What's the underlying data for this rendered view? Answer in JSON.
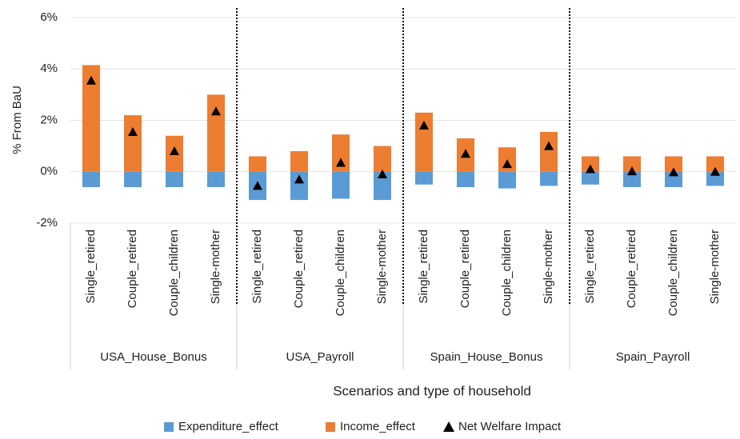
{
  "chart_data": {
    "type": "bar",
    "y_label": "% From BaU",
    "x_label": "Scenarios and type of household",
    "groups": [
      "USA_House_Bonus",
      "USA_Payroll",
      "Spain_House_Bonus",
      "Spain_Payroll"
    ],
    "categories": [
      "Single_retired",
      "Couple_retired",
      "Couple_children",
      "Single-mother",
      "Single_retired",
      "Couple_retired",
      "Couple_children",
      "Single-mother",
      "Single_retired",
      "Couple_retired",
      "Couple_children",
      "Single-mother",
      "Single_retired",
      "Couple_retired",
      "Couple_children",
      "Single-mother"
    ],
    "series": [
      {
        "name": "Expenditure_effect",
        "color": "#5b9bd5",
        "marker": "bar",
        "values": [
          -0.6,
          -0.6,
          -0.6,
          -0.6,
          -1.1,
          -1.1,
          -1.05,
          -1.1,
          -0.5,
          -0.6,
          -0.65,
          -0.55,
          -0.5,
          -0.6,
          -0.6,
          -0.55
        ]
      },
      {
        "name": "Income_effect",
        "color": "#ed7d31",
        "marker": "bar",
        "values": [
          4.15,
          2.2,
          1.4,
          3.0,
          0.6,
          0.8,
          1.45,
          1.0,
          2.3,
          1.3,
          0.95,
          1.55,
          0.6,
          0.6,
          0.6,
          0.6
        ]
      },
      {
        "name": "Net Welfare Impact",
        "color": "#000000",
        "marker": "triangle",
        "values": [
          3.55,
          1.55,
          0.8,
          2.35,
          -0.55,
          -0.3,
          0.35,
          -0.1,
          1.8,
          0.7,
          0.3,
          1.0,
          0.1,
          0.02,
          -0.02,
          0.0
        ]
      }
    ],
    "ylim": [
      -2,
      6
    ],
    "yticks": [
      {
        "value": -2,
        "label": "-2%"
      },
      {
        "value": 0,
        "label": "0%"
      },
      {
        "value": 2,
        "label": "2%"
      },
      {
        "value": 4,
        "label": "4%"
      },
      {
        "value": 6,
        "label": "6%"
      }
    ],
    "grid": true
  }
}
